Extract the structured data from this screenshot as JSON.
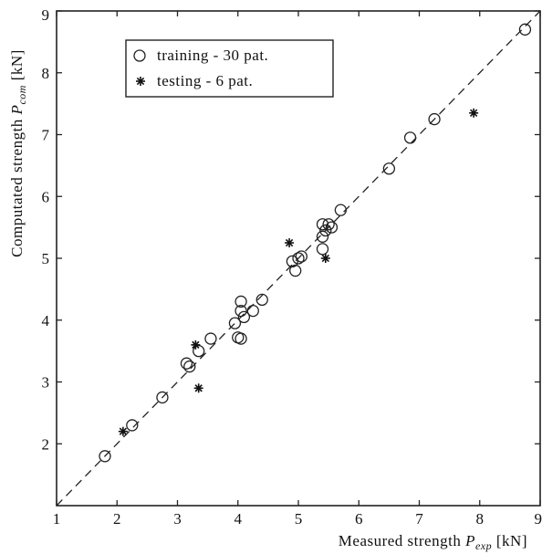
{
  "chart_data": {
    "type": "scatter",
    "xlabel": "Measured strength",
    "xlabel_symbol": "P",
    "xlabel_subscript": "exp",
    "xlabel_unit": "[kN]",
    "ylabel": "Computated strength",
    "ylabel_symbol": "P",
    "ylabel_subscript": "com",
    "ylabel_unit": "[kN]",
    "xlim": [
      1,
      9
    ],
    "ylim": [
      1,
      9
    ],
    "xticks": [
      "1",
      "2",
      "3",
      "4",
      "5",
      "6",
      "7",
      "8",
      "9"
    ],
    "yticks": [
      "2",
      "3",
      "4",
      "5",
      "6",
      "7",
      "8",
      "9"
    ],
    "grid": false,
    "legend_position": "top-left",
    "reference_line": "y = x (dashed)",
    "series": [
      {
        "name": "training - 30 pat.",
        "marker": "circle",
        "points": [
          [
            1.8,
            1.8
          ],
          [
            2.25,
            2.3
          ],
          [
            2.75,
            2.75
          ],
          [
            3.15,
            3.3
          ],
          [
            3.2,
            3.25
          ],
          [
            3.35,
            3.5
          ],
          [
            3.55,
            3.7
          ],
          [
            3.95,
            3.95
          ],
          [
            4.0,
            3.72
          ],
          [
            4.05,
            3.7
          ],
          [
            4.05,
            4.3
          ],
          [
            4.05,
            4.15
          ],
          [
            4.1,
            4.05
          ],
          [
            4.25,
            4.15
          ],
          [
            4.4,
            4.33
          ],
          [
            4.9,
            4.95
          ],
          [
            4.95,
            4.8
          ],
          [
            5.0,
            5.0
          ],
          [
            5.05,
            5.03
          ],
          [
            5.4,
            5.15
          ],
          [
            5.4,
            5.35
          ],
          [
            5.4,
            5.55
          ],
          [
            5.45,
            5.45
          ],
          [
            5.5,
            5.55
          ],
          [
            5.55,
            5.5
          ],
          [
            5.7,
            5.78
          ],
          [
            6.5,
            6.45
          ],
          [
            6.85,
            6.95
          ],
          [
            7.25,
            7.25
          ],
          [
            8.75,
            8.7
          ]
        ]
      },
      {
        "name": "testing - 6 pat.",
        "marker": "asterisk",
        "points": [
          [
            2.1,
            2.2
          ],
          [
            3.3,
            3.6
          ],
          [
            3.35,
            2.9
          ],
          [
            4.85,
            5.25
          ],
          [
            5.45,
            5.0
          ],
          [
            7.9,
            7.35
          ]
        ]
      }
    ]
  }
}
